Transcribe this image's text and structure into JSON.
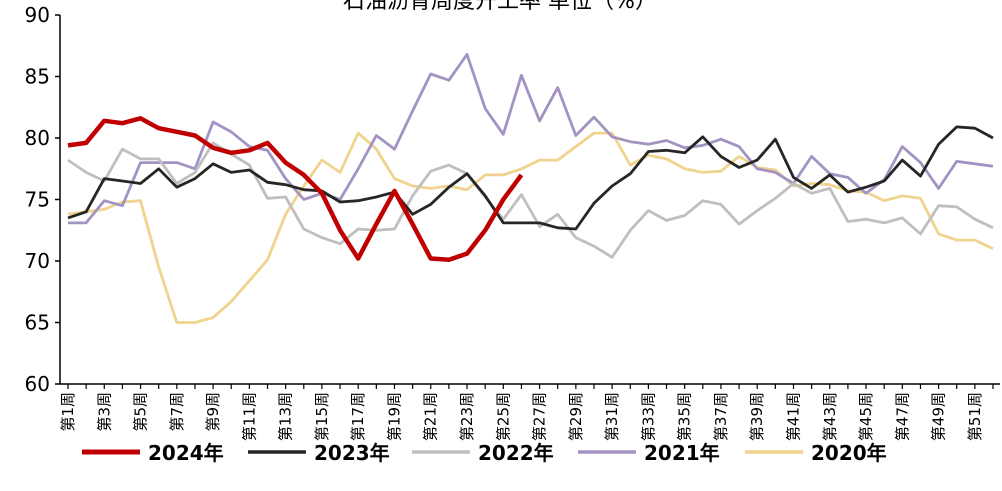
{
  "chart_data": {
    "type": "line",
    "title": "石油沥青周度开工率 单位（%）",
    "categories": [
      "第1周",
      null,
      "第3周",
      null,
      "第5周",
      null,
      "第7周",
      null,
      "第9周",
      null,
      "第11周",
      null,
      "第13周",
      null,
      "第15周",
      null,
      "第17周",
      null,
      "第19周",
      null,
      "第21周",
      null,
      "第23周",
      null,
      "第25周",
      null,
      "第27周",
      null,
      "第29周",
      null,
      "第31周",
      null,
      "第33周",
      null,
      "第35周",
      null,
      "第37周",
      null,
      "第39周",
      null,
      "第41周",
      null,
      "第43周",
      null,
      "第45周",
      null,
      "第47周",
      null,
      "第49周",
      null,
      "第51周",
      null
    ],
    "ylim": [
      60,
      90
    ],
    "yticks": [
      60,
      65,
      70,
      75,
      80,
      85,
      90
    ],
    "series": [
      {
        "name": "2024年",
        "color": "#c00000",
        "values": [
          79.4,
          79.6,
          81.4,
          81.2,
          81.6,
          80.8,
          80.5,
          80.2,
          79.2,
          78.8,
          79.0,
          79.6,
          78.0,
          77.0,
          75.5,
          72.5,
          70.2,
          73.0,
          75.7,
          73.0,
          70.2,
          70.1,
          70.6,
          72.5,
          75.0,
          77.0,
          null,
          null,
          null,
          null,
          null,
          null,
          null,
          null,
          null,
          null,
          null,
          null,
          null,
          null,
          null,
          null,
          null,
          null,
          null,
          null,
          null,
          null,
          null,
          null,
          null,
          null
        ]
      },
      {
        "name": "2023年",
        "color": "#262626",
        "values": [
          73.5,
          74.0,
          76.7,
          76.5,
          76.3,
          77.5,
          76.0,
          76.7,
          77.9,
          77.2,
          77.4,
          76.4,
          76.2,
          75.8,
          75.7,
          74.8,
          74.9,
          75.2,
          75.6,
          73.8,
          74.6,
          76.0,
          77.1,
          75.3,
          73.1,
          73.1,
          73.1,
          72.7,
          72.6,
          74.7,
          76.1,
          77.1,
          78.9,
          79.0,
          78.8,
          80.1,
          78.5,
          77.6,
          78.2,
          79.9,
          76.8,
          75.9,
          77.0,
          75.6,
          76.0,
          76.5,
          78.2,
          76.9,
          79.5,
          80.9,
          80.8,
          80.0
        ]
      },
      {
        "name": "2022年",
        "color": "#bfbfbf",
        "values": [
          78.2,
          77.2,
          76.5,
          79.1,
          78.3,
          78.3,
          76.3,
          77.2,
          79.6,
          78.7,
          77.8,
          75.1,
          75.2,
          72.6,
          71.9,
          71.4,
          72.6,
          72.5,
          72.6,
          75.3,
          77.3,
          77.8,
          77.1,
          75.2,
          73.4,
          75.4,
          72.8,
          73.8,
          71.9,
          71.2,
          70.3,
          72.5,
          74.1,
          73.3,
          73.7,
          74.9,
          74.6,
          73.0,
          74.1,
          75.1,
          76.3,
          75.5,
          75.9,
          73.2,
          73.4,
          73.1,
          73.5,
          72.2,
          74.5,
          74.4,
          73.4,
          72.7
        ]
      },
      {
        "name": "2021年",
        "color": "#a393c3",
        "values": [
          73.1,
          73.1,
          74.9,
          74.5,
          78.0,
          78.0,
          78.0,
          77.5,
          81.3,
          80.5,
          79.3,
          79.0,
          76.7,
          75.0,
          75.5,
          75.0,
          77.5,
          80.2,
          79.1,
          82.2,
          85.2,
          84.7,
          86.8,
          82.4,
          80.3,
          85.1,
          81.4,
          84.1,
          80.2,
          81.7,
          80.1,
          79.7,
          79.5,
          79.8,
          79.2,
          79.4,
          79.9,
          79.3,
          77.5,
          77.2,
          76.3,
          78.5,
          77.1,
          76.8,
          75.5,
          76.6,
          79.3,
          78.0,
          75.9,
          78.1,
          77.9,
          77.7
        ]
      },
      {
        "name": "2020年",
        "color": "#f0d38c",
        "values": [
          73.8,
          74.0,
          74.2,
          74.8,
          74.9,
          69.5,
          65.0,
          65.0,
          65.4,
          66.7,
          68.4,
          70.1,
          73.8,
          76.1,
          78.2,
          77.2,
          80.4,
          79.1,
          76.7,
          76.1,
          75.9,
          76.1,
          75.8,
          77.0,
          77.0,
          77.5,
          78.2,
          78.2,
          79.3,
          80.4,
          80.4,
          77.8,
          78.6,
          78.3,
          77.5,
          77.2,
          77.3,
          78.5,
          77.6,
          77.4,
          76.1,
          76.3,
          76.2,
          75.7,
          75.6,
          74.9,
          75.3,
          75.1,
          72.2,
          71.7,
          71.7,
          71.0
        ]
      }
    ]
  }
}
